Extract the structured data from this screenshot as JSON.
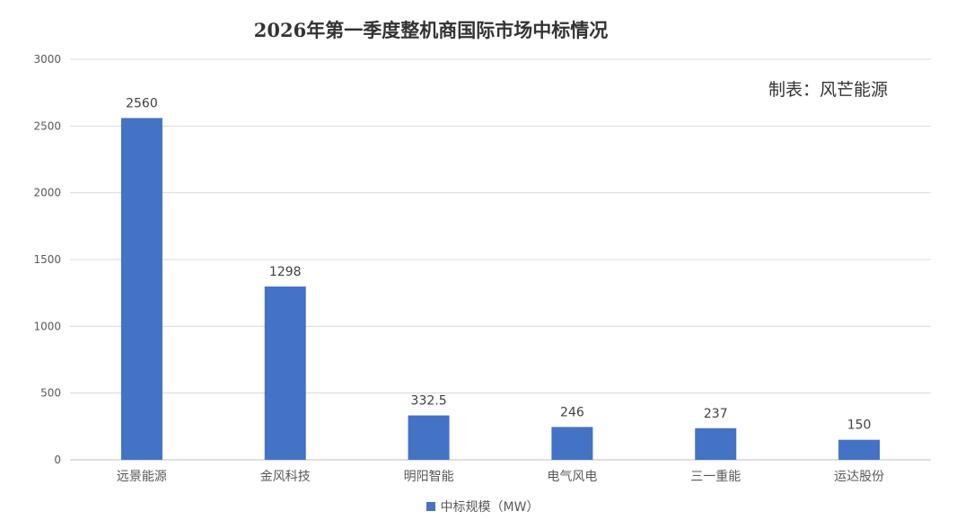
{
  "colors": {
    "bar": "#4472C4",
    "grid": "#D9D9D9",
    "axis_text": "#595959",
    "label_text": "#404040"
  },
  "credit_text": "制表：风芒能源",
  "chart_data": {
    "type": "bar",
    "title": "2026年第一季度整机商国际市场中标情况",
    "categories": [
      "远景能源",
      "金风科技",
      "明阳智能",
      "电气风电",
      "三一重能",
      "运达股份"
    ],
    "series": [
      {
        "name": "中标规模（MW）",
        "values": [
          2560,
          1298,
          332.5,
          246,
          237,
          150
        ]
      }
    ],
    "data_labels": [
      "2560",
      "1298",
      "332.5",
      "246",
      "237",
      "150"
    ],
    "ylim": [
      0,
      3000
    ],
    "yticks": [
      0,
      500,
      1000,
      1500,
      2000,
      2500,
      3000
    ],
    "grid": true,
    "legend": "bottom",
    "xlabel": "",
    "ylabel": ""
  }
}
